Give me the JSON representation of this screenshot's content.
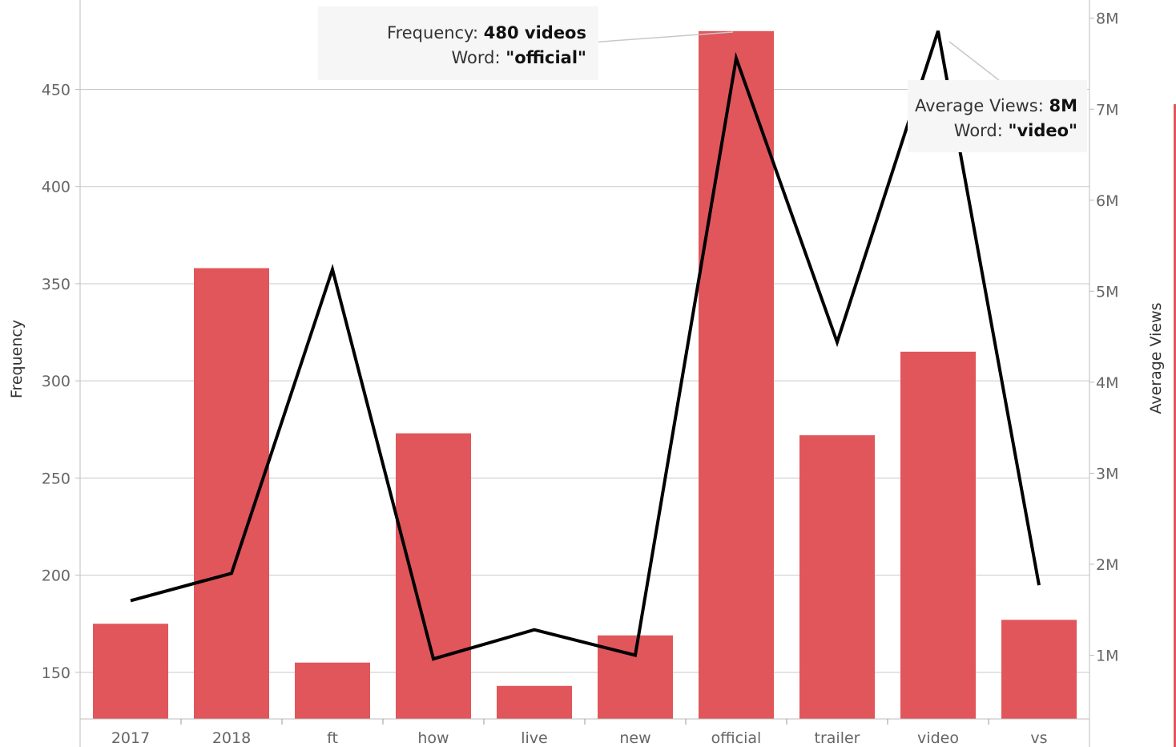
{
  "chart_data": {
    "type": "bar",
    "categories": [
      "2017",
      "2018",
      "ft",
      "how",
      "live",
      "new",
      "official",
      "trailer",
      "video",
      "vs"
    ],
    "series": [
      {
        "name": "Frequency",
        "type": "bar",
        "axis": "left",
        "color": "#e0565b",
        "values": [
          175,
          358,
          155,
          273,
          143,
          169,
          480,
          272,
          315,
          177
        ]
      },
      {
        "name": "Average Views",
        "type": "line",
        "axis": "right",
        "color": "#000000",
        "values": [
          1600000,
          1900000,
          5240000,
          960000,
          1280000,
          1000000,
          7560000,
          4440000,
          7860000,
          1770000
        ]
      }
    ],
    "title": "",
    "xlabel": "",
    "ylabel": "Frequency",
    "y2label": "Average Views",
    "ylim": [
      126,
      496
    ],
    "y2lim": [
      0.3,
      8.2
    ],
    "yticks": [
      150,
      200,
      250,
      300,
      350,
      400,
      450
    ],
    "y2ticks": [
      "1M",
      "2M",
      "3M",
      "4M",
      "5M",
      "6M",
      "7M",
      "8M"
    ],
    "grid": true,
    "annotations": [
      {
        "target": "official",
        "lines": [
          {
            "label": "Frequency: ",
            "value": "480 videos"
          },
          {
            "label": "Word: ",
            "value": "\"official\""
          }
        ]
      },
      {
        "target": "video",
        "lines": [
          {
            "label": "Average Views: ",
            "value": "8M"
          },
          {
            "label": "Word: ",
            "value": "\"video\""
          }
        ]
      }
    ]
  }
}
